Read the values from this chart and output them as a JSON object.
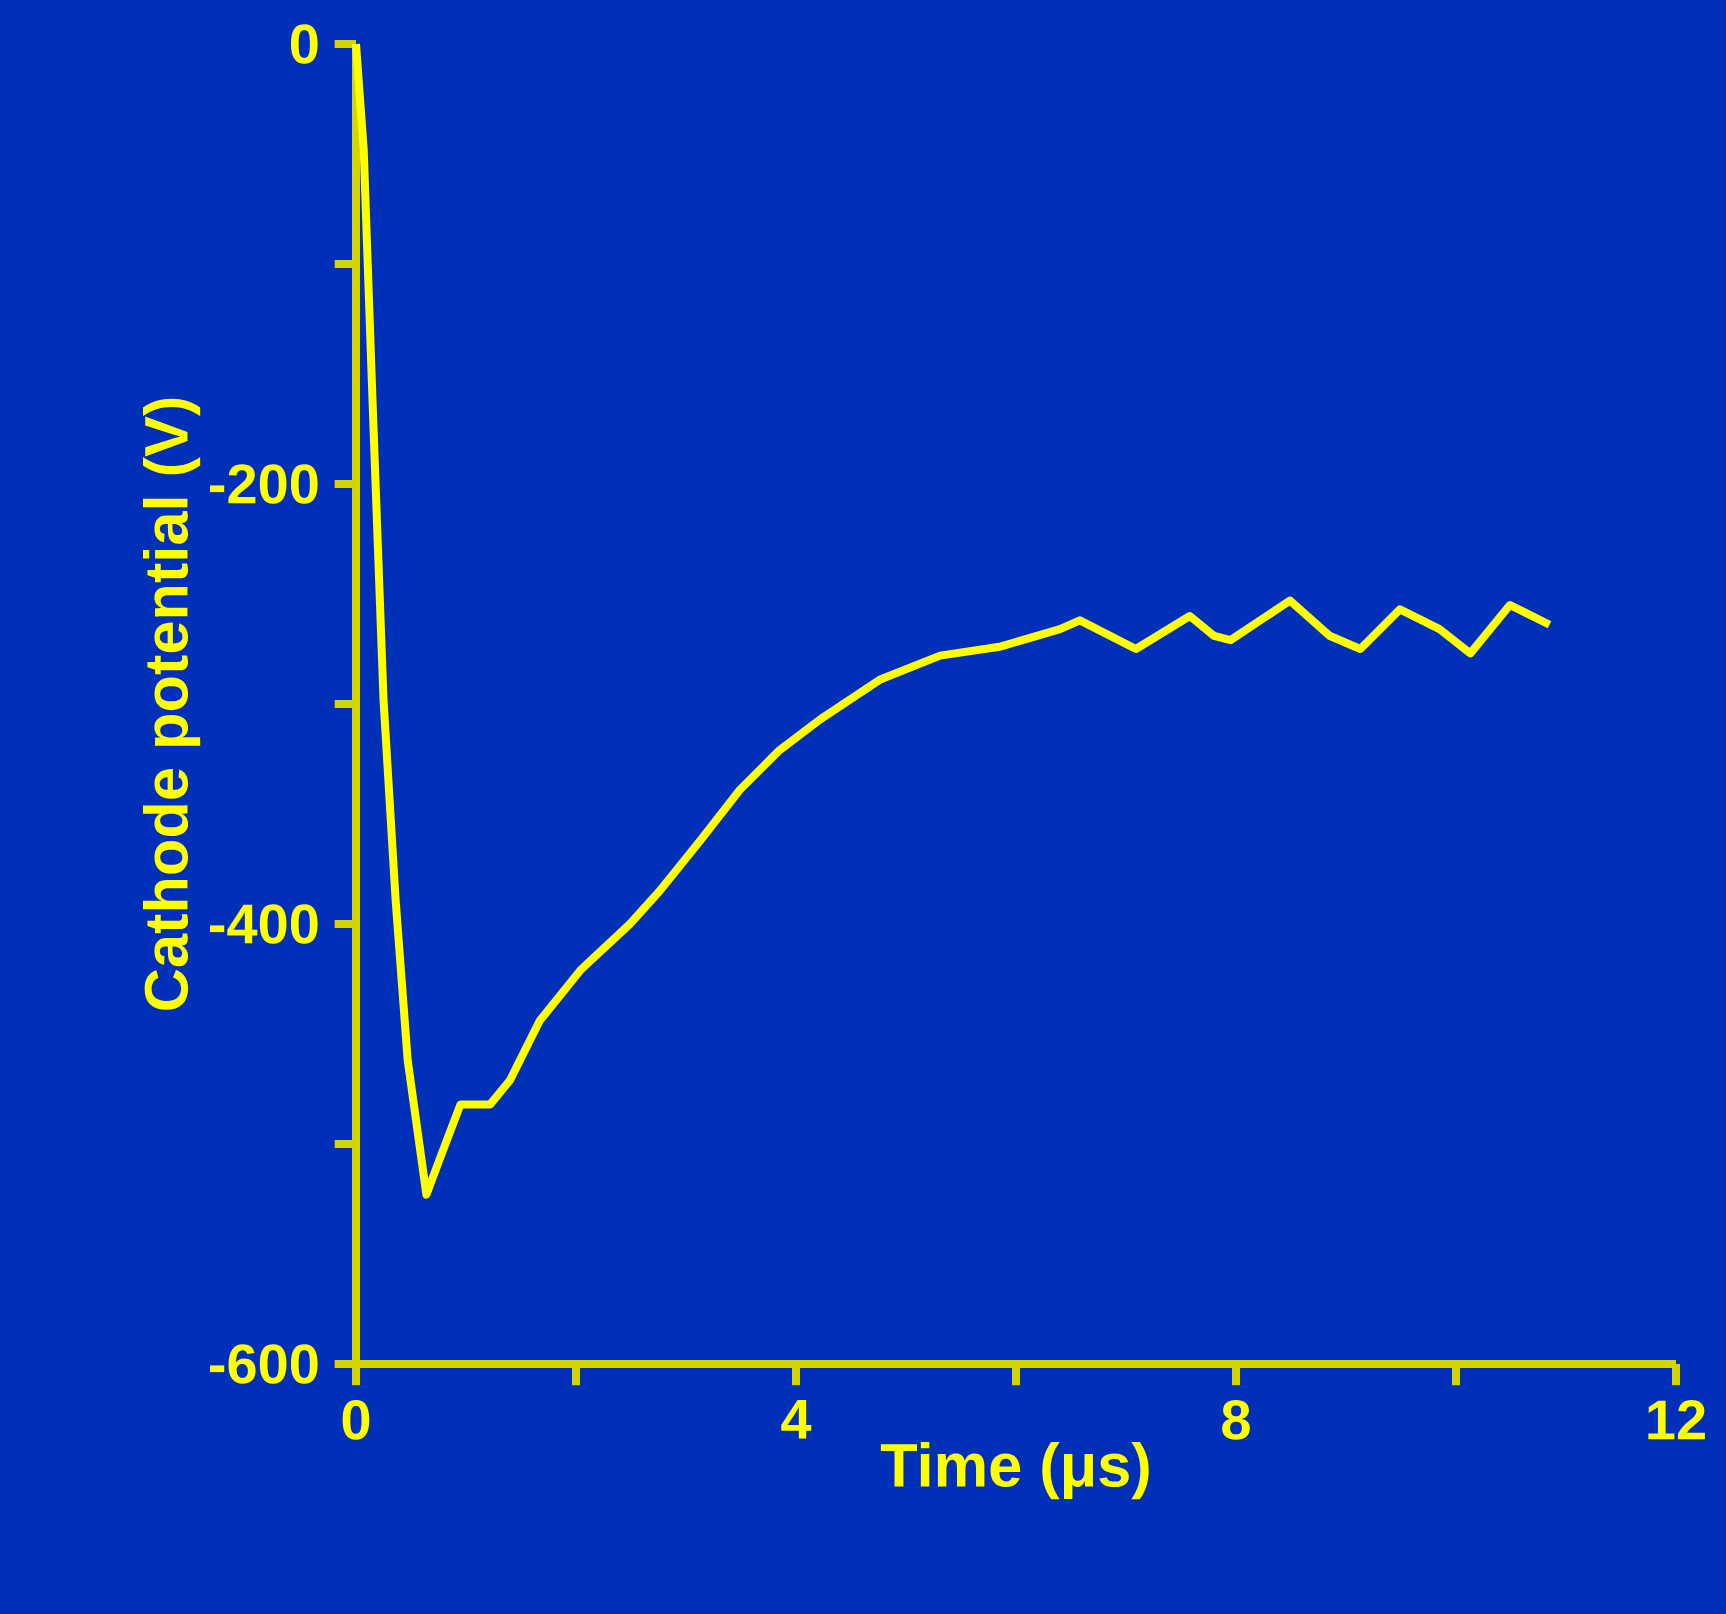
{
  "chart_data": {
    "type": "line",
    "xlabel": "Time (μs)",
    "ylabel": "Cathode potential (V)",
    "xlim": [
      0,
      12
    ],
    "ylim": [
      -600,
      0
    ],
    "xticks": [
      0,
      {
        "value": 2,
        "label": null
      },
      4,
      {
        "value": 6,
        "label": null
      },
      8,
      {
        "value": 10,
        "label": null
      },
      12
    ],
    "yticks": [
      -600,
      {
        "value": -500,
        "label": null
      },
      -400,
      {
        "value": -300,
        "label": null
      },
      -200,
      {
        "value": -100,
        "label": null
      },
      0
    ],
    "grid": false,
    "legend": false,
    "marker": "none",
    "line_style": "solid",
    "series": [
      {
        "color": "#ffff00",
        "x": [
          0,
          0.07,
          0.15,
          0.25,
          0.36,
          0.47,
          0.64,
          0.76,
          0.95,
          1.22,
          1.4,
          1.67,
          2.04,
          2.49,
          2.76,
          3.13,
          3.49,
          3.85,
          4.22,
          4.76,
          5.31,
          5.85,
          6.4,
          6.58,
          7.09,
          7.58,
          7.8,
          7.95,
          8.49,
          8.85,
          9.13,
          9.49,
          9.85,
          10.13,
          10.49,
          10.85
        ],
        "values": [
          0,
          -48,
          -162,
          -298,
          -389,
          -462,
          -523,
          -507,
          -482,
          -482,
          -471,
          -444,
          -421,
          -400,
          -385,
          -362,
          -339,
          -321,
          -307,
          -289,
          -278,
          -274,
          -266,
          -262,
          -275,
          -260,
          -269,
          -271,
          -253,
          -269,
          -275,
          -257,
          -266,
          -277,
          -255,
          -264
        ]
      }
    ]
  }
}
